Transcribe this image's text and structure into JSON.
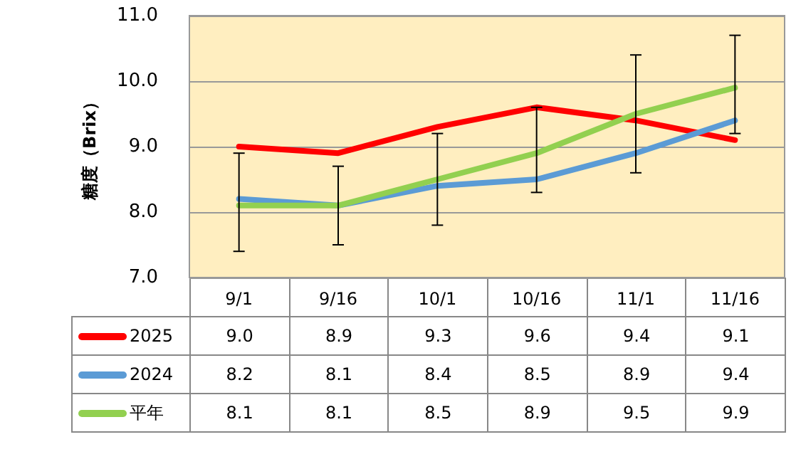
{
  "chart_data": {
    "type": "line",
    "ylabel": "糖度（Brix）",
    "categories": [
      "9/1",
      "9/16",
      "10/1",
      "10/16",
      "11/1",
      "11/16"
    ],
    "series": [
      {
        "name": "2025",
        "color": "#ff0000",
        "values": [
          9.0,
          8.9,
          9.3,
          9.6,
          9.4,
          9.1
        ],
        "value_labels": [
          "9.0",
          "8.9",
          "9.3",
          "9.6",
          "9.4",
          "9.1"
        ]
      },
      {
        "name": "2024",
        "color": "#5b9bd5",
        "values": [
          8.2,
          8.1,
          8.4,
          8.5,
          8.9,
          9.4
        ],
        "value_labels": [
          "8.2",
          "8.1",
          "8.4",
          "8.5",
          "8.9",
          "9.4"
        ]
      },
      {
        "name": "平年",
        "color": "#92d050",
        "values": [
          8.1,
          8.1,
          8.5,
          8.9,
          9.5,
          9.9
        ],
        "value_labels": [
          "8.1",
          "8.1",
          "8.5",
          "8.9",
          "9.5",
          "9.9"
        ],
        "errors": [
          [
            7.4,
            8.9
          ],
          [
            7.5,
            8.7
          ],
          [
            7.8,
            9.2
          ],
          [
            8.3,
            9.6
          ],
          [
            8.6,
            10.4
          ],
          [
            9.2,
            10.7
          ]
        ]
      }
    ],
    "ylim": [
      7,
      11
    ],
    "yticks": [
      {
        "value": 7,
        "label": "7.0"
      },
      {
        "value": 8,
        "label": "8.0"
      },
      {
        "value": 9,
        "label": "9.0"
      },
      {
        "value": 10,
        "label": "10.0"
      },
      {
        "value": 11,
        "label": "11.0"
      }
    ],
    "grid": "y",
    "legend": "bottom"
  }
}
